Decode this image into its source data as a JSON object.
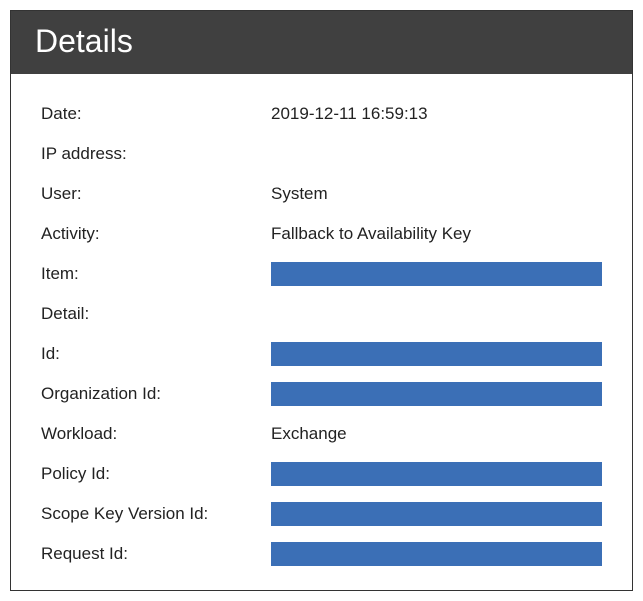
{
  "panel": {
    "title": "Details",
    "header_bg": "#404040",
    "header_fg": "#ffffff",
    "border_color": "#333333",
    "body_bg": "#ffffff",
    "redacted_color": "#3b6fb6",
    "label_color": "#222222",
    "value_color": "#222222",
    "title_fontsize": 32,
    "row_fontsize": 17
  },
  "fields": {
    "date": {
      "label": "Date:",
      "value": "2019-12-11 16:59:13",
      "redacted": false
    },
    "ip_address": {
      "label": "IP address:",
      "value": "",
      "redacted": false
    },
    "user": {
      "label": "User:",
      "value": "System",
      "redacted": false
    },
    "activity": {
      "label": "Activity:",
      "value": "Fallback to Availability Key",
      "redacted": false
    },
    "item": {
      "label": "Item:",
      "value": "",
      "redacted": true
    },
    "detail": {
      "label": "Detail:",
      "value": "",
      "redacted": false
    },
    "id": {
      "label": "Id:",
      "value": "",
      "redacted": true
    },
    "organization_id": {
      "label": "Organization Id:",
      "value": "",
      "redacted": true
    },
    "workload": {
      "label": "Workload:",
      "value": "Exchange",
      "redacted": false
    },
    "policy_id": {
      "label": "Policy Id:",
      "value": "",
      "redacted": true
    },
    "scope_key_version_id": {
      "label": "Scope Key Version Id:",
      "value": "",
      "redacted": true
    },
    "request_id": {
      "label": "Request Id:",
      "value": "",
      "redacted": true
    }
  }
}
